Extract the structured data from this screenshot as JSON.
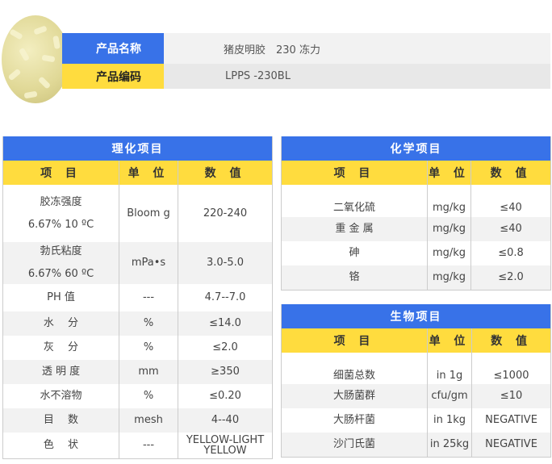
{
  "product": {
    "name_label": "产品名称",
    "name_value": "猪皮明胶　230  冻力",
    "code_label": "产品编码",
    "code_value": "LPPS -230BL"
  },
  "colors": {
    "blue": "#3872e8",
    "yellow": "#ffdc3e"
  },
  "physchem": {
    "title": "理化项目",
    "headers": [
      "项 目",
      "单 位",
      "数 值"
    ],
    "rows": [
      {
        "item": "胶冻强度",
        "sub": "6.67% 10 ºC",
        "unit": "Bloom g",
        "value": "220-240"
      },
      {
        "item": "勃氏粘度",
        "sub": "6.67% 60 ºC",
        "unit": "mPa•s",
        "value": "3.0-5.0"
      },
      {
        "item": "PH 值",
        "unit": "---",
        "value": "4.7--7.0"
      },
      {
        "item": "水　 分",
        "unit": "%",
        "value": "≤14.0"
      },
      {
        "item": "灰　 分",
        "unit": "%",
        "value": "≤2.0"
      },
      {
        "item": "透 明 度",
        "unit": "mm",
        "value": "≥350"
      },
      {
        "item": "水不溶物",
        "unit": "%",
        "value": "≤0.20"
      },
      {
        "item": "目　 数",
        "unit": "mesh",
        "value": "4--40"
      },
      {
        "item": "色　 状",
        "unit": "---",
        "value": "YELLOW-LIGHT YELLOW"
      }
    ]
  },
  "chem": {
    "title": "化学项目",
    "headers": [
      "项 目",
      "单 位",
      "数 值"
    ],
    "rows": [
      {
        "item": "二氧化硫",
        "unit": "mg/kg",
        "value": "≤40"
      },
      {
        "item": "重 金 属",
        "unit": "mg/kg",
        "value": "≤40"
      },
      {
        "item": "砷",
        "unit": "mg/kg",
        "value": "≤0.8"
      },
      {
        "item": "铬",
        "unit": "mg/kg",
        "value": "≤2.0"
      }
    ]
  },
  "bio": {
    "title": "生物项目",
    "headers": [
      "项 目",
      "单 位",
      "数 值"
    ],
    "rows": [
      {
        "item": "细菌总数",
        "unit": "in 1g",
        "value": "≤1000"
      },
      {
        "item": "大肠菌群",
        "unit": "cfu/gm",
        "value": "≤10"
      },
      {
        "item": "大肠杆菌",
        "unit": "in 1kg",
        "value": "NEGATIVE"
      },
      {
        "item": "沙门氏菌",
        "unit": "in 25kg",
        "value": "NEGATIVE"
      }
    ]
  }
}
